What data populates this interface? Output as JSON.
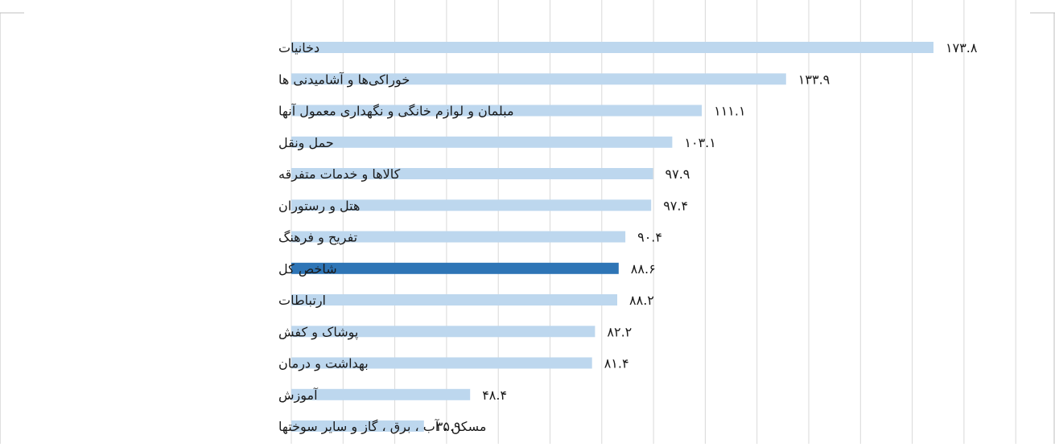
{
  "chart_data": {
    "type": "bar",
    "orientation": "horizontal",
    "title": "",
    "xlabel": "",
    "ylabel": "",
    "xlim": [
      0,
      190
    ],
    "grid": true,
    "categories": [
      "دخانیات",
      "خوراکی‌ها و آشامیدنی ها",
      "مبلمان و لوازم خانگی و نگهداری معمول آنها",
      "حمل ونقل",
      "کالاها و خدمات متفرقه",
      "هتل و رستوران",
      "تفریح و فرهنگ",
      "شاخص کل",
      "ارتباطات",
      "پوشاک و کفش",
      "بهداشت و درمان",
      "آموزش",
      "مسکن ، آب ، برق ، گاز و سایر سوختها"
    ],
    "values": [
      173.8,
      133.9,
      111.1,
      103.1,
      97.9,
      97.4,
      90.4,
      88.6,
      88.2,
      82.2,
      81.4,
      48.4,
      35.9
    ],
    "value_labels": [
      "۱۷۳.۸",
      "۱۳۳.۹",
      "۱۱۱.۱",
      "۱۰۳.۱",
      "۹۷.۹",
      "۹۷.۴",
      "۹۰.۴",
      "۸۸.۶",
      "۸۸.۲",
      "۸۲.۲",
      "۸۱.۴",
      "۴۸.۴",
      "۳۵.۹"
    ],
    "highlight_index": 7,
    "colors": {
      "bar": "#bdd7ee",
      "bar_highlight": "#2e75b6",
      "grid": "#d9d9d9",
      "text": "#1a1a1a"
    }
  }
}
